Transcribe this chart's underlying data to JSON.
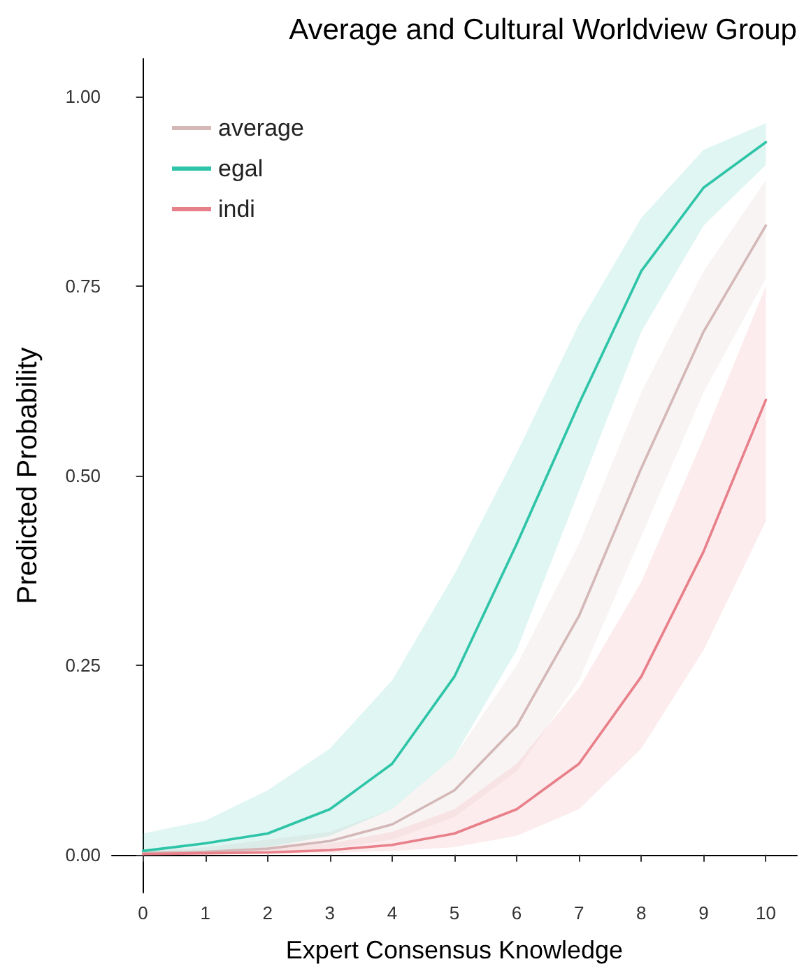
{
  "chart_data": {
    "type": "line",
    "title": "Average and Cultural Worldview Group",
    "xlabel": "Expert Consensus Knowledge",
    "ylabel": "Predicted Probability",
    "x": [
      0,
      1,
      2,
      3,
      4,
      5,
      6,
      7,
      8,
      9,
      10
    ],
    "series": [
      {
        "name": "average",
        "color": "#d4b8b8",
        "values": [
          0.002,
          0.004,
          0.008,
          0.018,
          0.04,
          0.085,
          0.17,
          0.315,
          0.51,
          0.69,
          0.83
        ],
        "lower": [
          0,
          0.001,
          0.003,
          0.008,
          0.02,
          0.05,
          0.11,
          0.23,
          0.42,
          0.61,
          0.76
        ],
        "upper": [
          0.005,
          0.01,
          0.02,
          0.03,
          0.06,
          0.13,
          0.25,
          0.41,
          0.61,
          0.77,
          0.89
        ]
      },
      {
        "name": "egal",
        "color": "#2ec4a8",
        "values": [
          0.005,
          0.015,
          0.028,
          0.06,
          0.12,
          0.235,
          0.41,
          0.595,
          0.77,
          0.88,
          0.94
        ],
        "lower": [
          0,
          0.005,
          0.01,
          0.025,
          0.06,
          0.13,
          0.27,
          0.48,
          0.69,
          0.83,
          0.91
        ],
        "upper": [
          0.028,
          0.045,
          0.085,
          0.14,
          0.23,
          0.37,
          0.53,
          0.7,
          0.84,
          0.93,
          0.965
        ]
      },
      {
        "name": "indi",
        "color": "#e8808a",
        "values": [
          0.001,
          0.002,
          0.003,
          0.006,
          0.013,
          0.028,
          0.06,
          0.12,
          0.235,
          0.4,
          0.6
        ],
        "lower": [
          0,
          0,
          0.001,
          0.002,
          0.005,
          0.01,
          0.025,
          0.06,
          0.14,
          0.27,
          0.44
        ],
        "upper": [
          0.003,
          0.005,
          0.008,
          0.015,
          0.03,
          0.06,
          0.12,
          0.22,
          0.36,
          0.55,
          0.75
        ]
      }
    ],
    "xlim": [
      -0.5,
      10.5
    ],
    "xticks": [
      0,
      1,
      2,
      3,
      4,
      5,
      6,
      7,
      8,
      9,
      10
    ],
    "ylim": [
      -0.05,
      1.05
    ],
    "yticks": [
      {
        "value": 0,
        "label": "0.00"
      },
      {
        "value": 0.25,
        "label": "0.25"
      },
      {
        "value": 0.5,
        "label": "0.50"
      },
      {
        "value": 0.75,
        "label": "0.75"
      },
      {
        "value": 1,
        "label": "1.00"
      }
    ],
    "grid": false,
    "legend": "top left",
    "marker": "none",
    "line_style": "solid"
  }
}
